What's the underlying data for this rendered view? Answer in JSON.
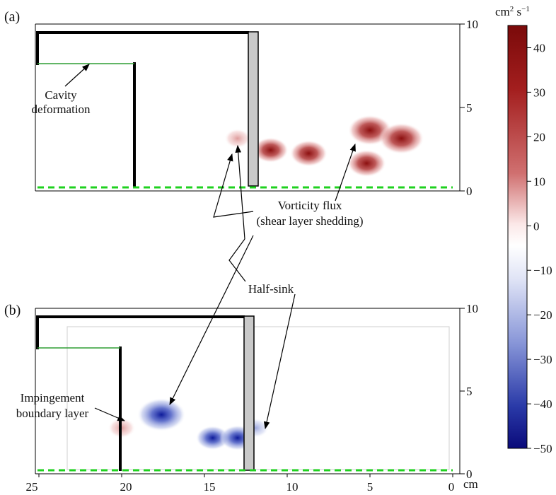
{
  "panels": {
    "a": {
      "label": "(a)",
      "y_ticks": [
        "10",
        "5",
        "0"
      ],
      "annotations": {
        "cavity_line1": "Cavity",
        "cavity_line2": "deformation",
        "vorticity_line1": "Vorticity flux",
        "vorticity_line2": "(shear layer shedding)"
      }
    },
    "b": {
      "label": "(b)",
      "y_ticks": [
        "10",
        "5",
        "0"
      ],
      "annotations": {
        "impingement_line1": "Impingement",
        "impingement_line2": "boundary layer"
      }
    }
  },
  "shared_annotation": "Half-sink",
  "x_axis": {
    "ticks": [
      "25",
      "20",
      "15",
      "10",
      "5",
      "0"
    ],
    "unit": "cm",
    "range": [
      25,
      0
    ]
  },
  "y_axis": {
    "range": [
      0,
      10
    ]
  },
  "colorbar": {
    "unit_base": "cm",
    "unit_sup1": "2",
    "unit_mid": " s",
    "unit_sup2": "−1",
    "ticks": [
      "40",
      "30",
      "20",
      "10",
      "0",
      "−10",
      "−20",
      "−30",
      "−40",
      "−50"
    ],
    "range": [
      -50,
      45
    ],
    "colors": {
      "max": "#7a0a0a",
      "zero": "#ffffff",
      "min": "#0a0a7a"
    }
  },
  "chart_data": {
    "type": "heatmap",
    "quantity": "vorticity flux",
    "colorbar_range": [
      -50,
      45
    ],
    "panel_a_blobs": [
      {
        "x_cm": 11.0,
        "y_cm": 2.3,
        "value": 25
      },
      {
        "x_cm": 8.7,
        "y_cm": 2.1,
        "value": 28
      },
      {
        "x_cm": 5.0,
        "y_cm": 3.5,
        "value": 38
      },
      {
        "x_cm": 3.1,
        "y_cm": 3.0,
        "value": 40
      },
      {
        "x_cm": 5.2,
        "y_cm": 1.5,
        "value": 30
      },
      {
        "x_cm": 13.0,
        "y_cm": 3.0,
        "value": 10
      }
    ],
    "panel_b_blobs": [
      {
        "x_cm": 20.0,
        "y_cm": 2.6,
        "value": 12
      },
      {
        "x_cm": 17.6,
        "y_cm": 3.4,
        "value": -45
      },
      {
        "x_cm": 14.5,
        "y_cm": 2.0,
        "value": -22
      },
      {
        "x_cm": 13.0,
        "y_cm": 2.0,
        "value": -25
      },
      {
        "x_cm": 11.9,
        "y_cm": 2.6,
        "value": -10
      }
    ]
  }
}
